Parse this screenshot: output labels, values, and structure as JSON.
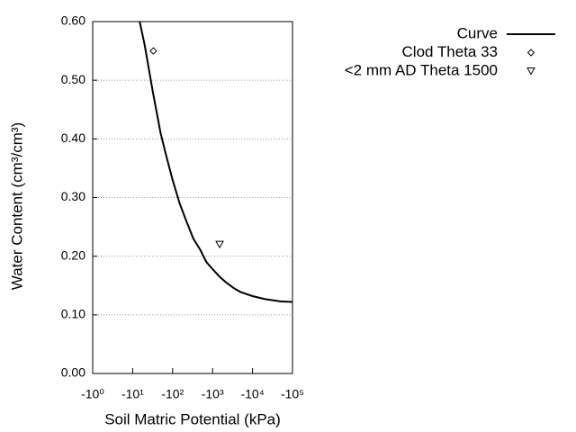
{
  "chart_data": {
    "type": "line",
    "xlabel": "Soil Matric Potential (kPa)",
    "ylabel": "Water Content (cm³/cm³)",
    "xscale": "log",
    "xlim": [
      1,
      100000
    ],
    "xticks": [
      {
        "value": 1,
        "label": "-10⁰"
      },
      {
        "value": 10,
        "label": "-10¹"
      },
      {
        "value": 100,
        "label": "-10²"
      },
      {
        "value": 1000,
        "label": "-10³"
      },
      {
        "value": 10000,
        "label": "-10⁴"
      },
      {
        "value": 100000,
        "label": "-10⁵"
      }
    ],
    "ylim": [
      0,
      0.6
    ],
    "yticks": [
      {
        "value": 0,
        "label": "0.00"
      },
      {
        "value": 0.1,
        "label": "0.10"
      },
      {
        "value": 0.2,
        "label": "0.20"
      },
      {
        "value": 0.3,
        "label": "0.30"
      },
      {
        "value": 0.4,
        "label": "0.40"
      },
      {
        "value": 0.5,
        "label": "0.50"
      },
      {
        "value": 0.6,
        "label": "0.60"
      }
    ],
    "grid": true,
    "legend": "top-right",
    "series": [
      {
        "name": "Curve",
        "color": "#000000",
        "marker": "none",
        "x": [
          15,
          20,
          32,
          50,
          70,
          100,
          150,
          220,
          330,
          500,
          700,
          1000,
          1500,
          2200,
          3500,
          5000,
          10000,
          20000,
          50000,
          100000
        ],
        "values": [
          0.6,
          0.56,
          0.48,
          0.41,
          0.37,
          0.33,
          0.29,
          0.26,
          0.23,
          0.21,
          0.19,
          0.178,
          0.165,
          0.155,
          0.145,
          0.139,
          0.132,
          0.127,
          0.123,
          0.122
        ]
      },
      {
        "name": "Clod Theta 33",
        "color": "#000000",
        "marker": "diamond",
        "x": [
          33
        ],
        "values": [
          0.55
        ]
      },
      {
        "name": "<2 mm AD Theta 1500",
        "color": "#000000",
        "marker": "triangle-down",
        "x": [
          1500
        ],
        "values": [
          0.22
        ]
      }
    ]
  }
}
